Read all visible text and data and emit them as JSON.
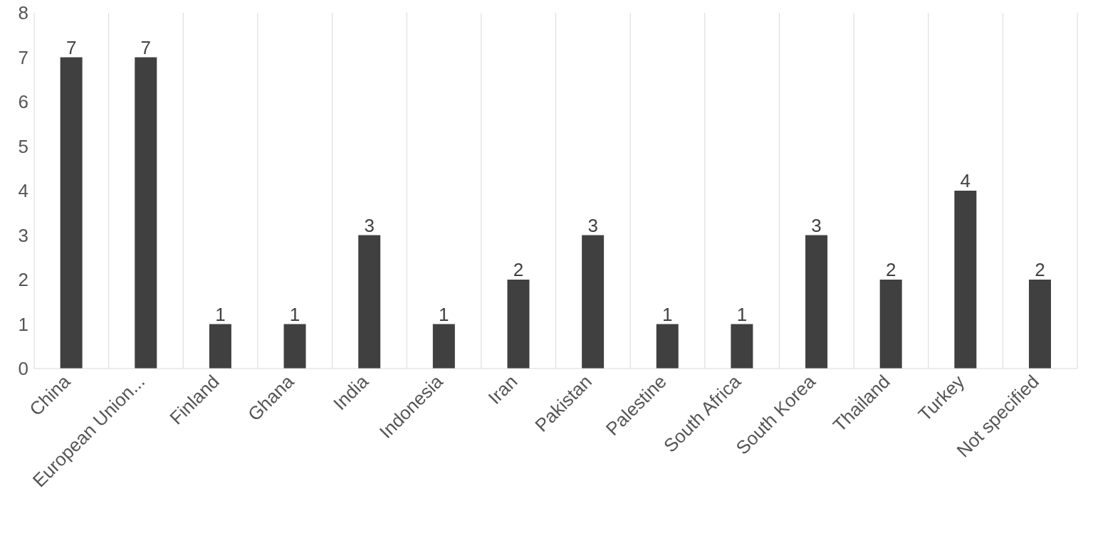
{
  "chart_data": {
    "type": "bar",
    "categories": [
      "China",
      "European Union...",
      "Finland",
      "Ghana",
      "India",
      "Indonesia",
      "Iran",
      "Pakistan",
      "Palestine",
      "South Africa",
      "South Korea",
      "Thailand",
      "Turkey",
      "Not specified"
    ],
    "values": [
      7,
      7,
      1,
      1,
      3,
      1,
      2,
      3,
      1,
      1,
      3,
      2,
      4,
      2
    ],
    "color": "#404040",
    "ylim": [
      0,
      8
    ],
    "yticks": [
      0,
      1,
      2,
      3,
      4,
      5,
      6,
      7,
      8
    ],
    "grid": "x",
    "data_labels": true
  }
}
